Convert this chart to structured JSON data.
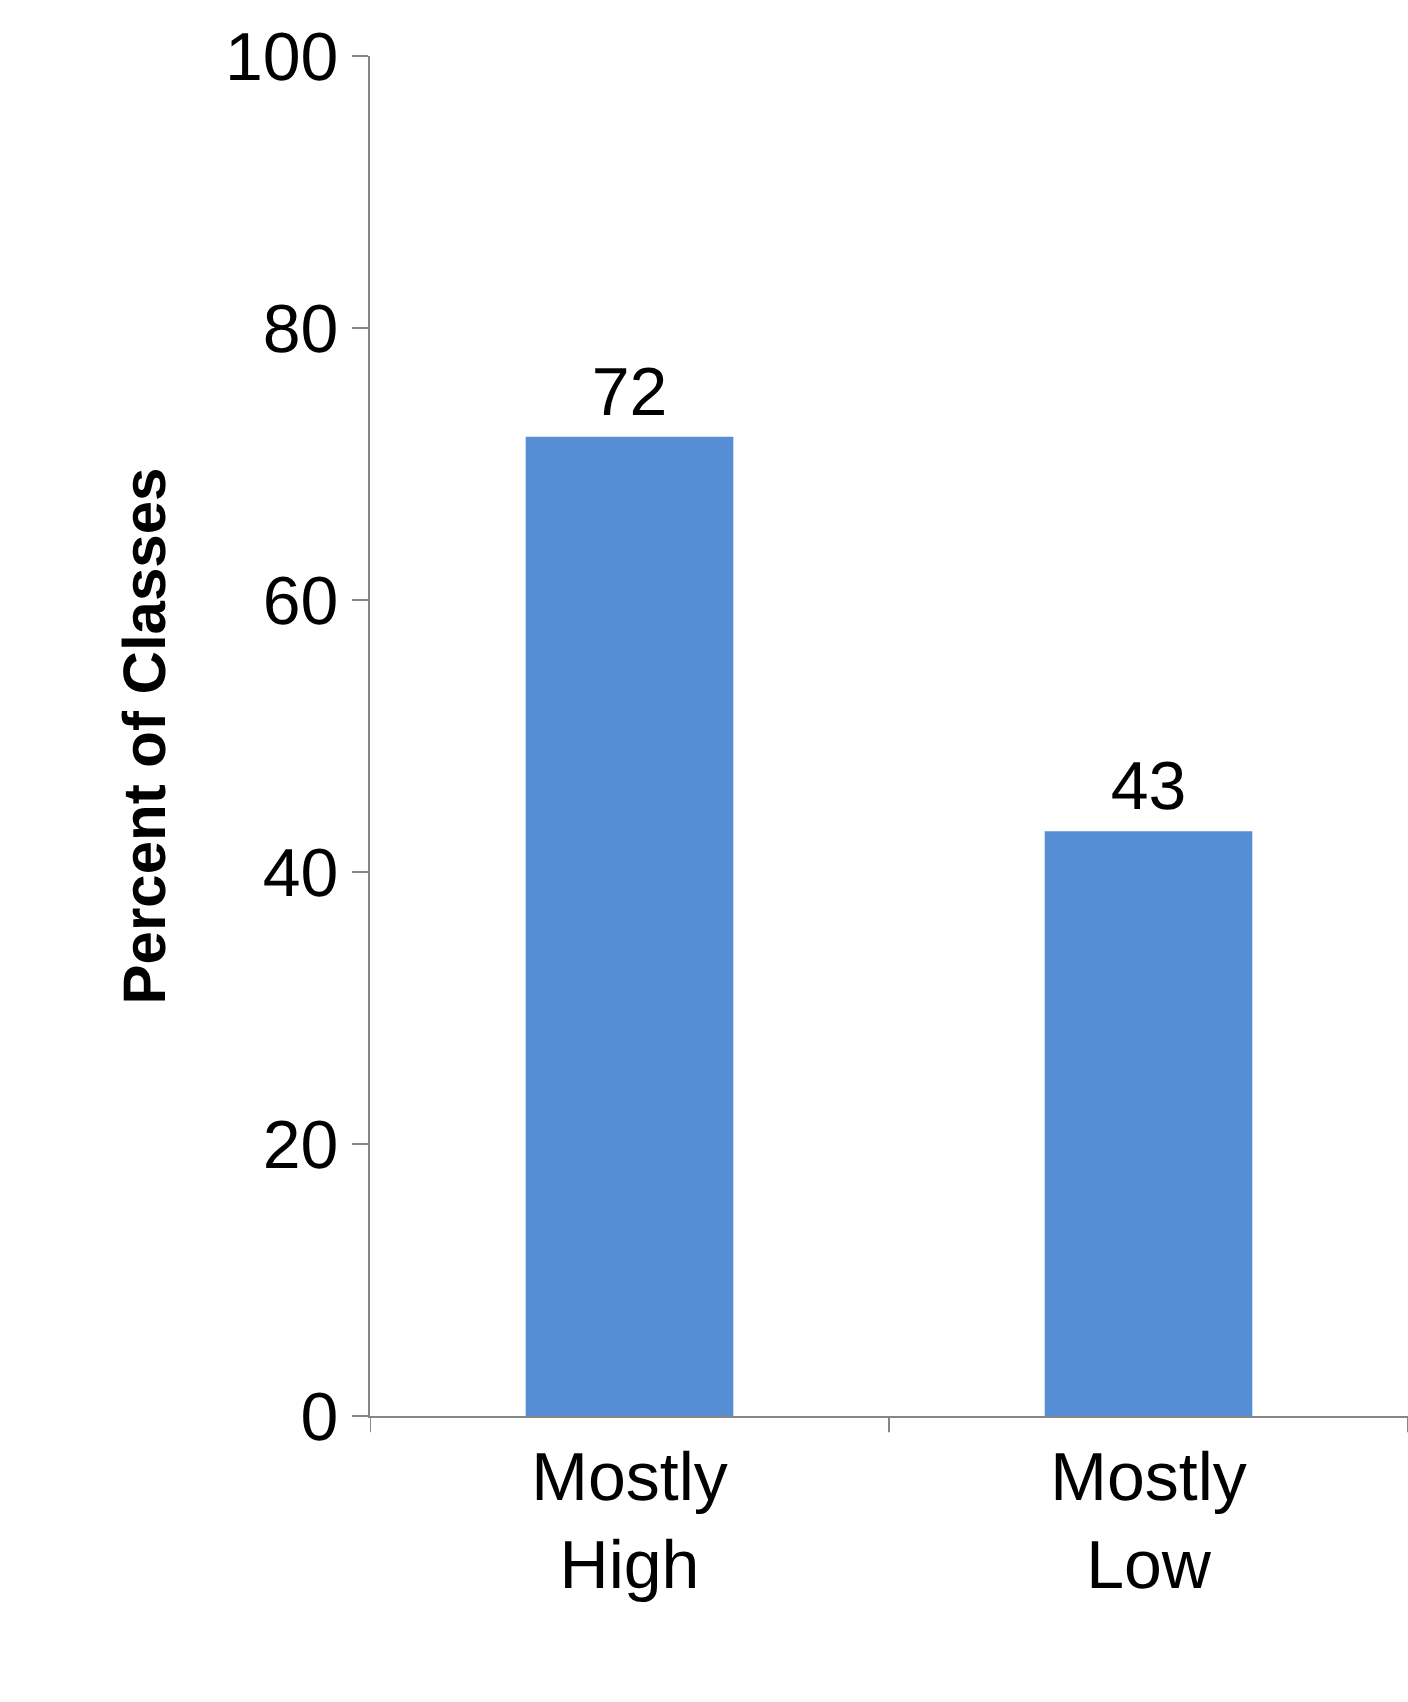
{
  "chart_data": {
    "type": "bar",
    "ylabel": "Percent of Classes",
    "categories": [
      "Mostly High",
      "Mostly Low"
    ],
    "values": [
      72,
      43
    ],
    "color": "#558ed5",
    "ylim": [
      0,
      100
    ],
    "yticks": [
      0,
      20,
      40,
      60,
      80,
      100
    ],
    "data_labels": true,
    "legend": false
  }
}
